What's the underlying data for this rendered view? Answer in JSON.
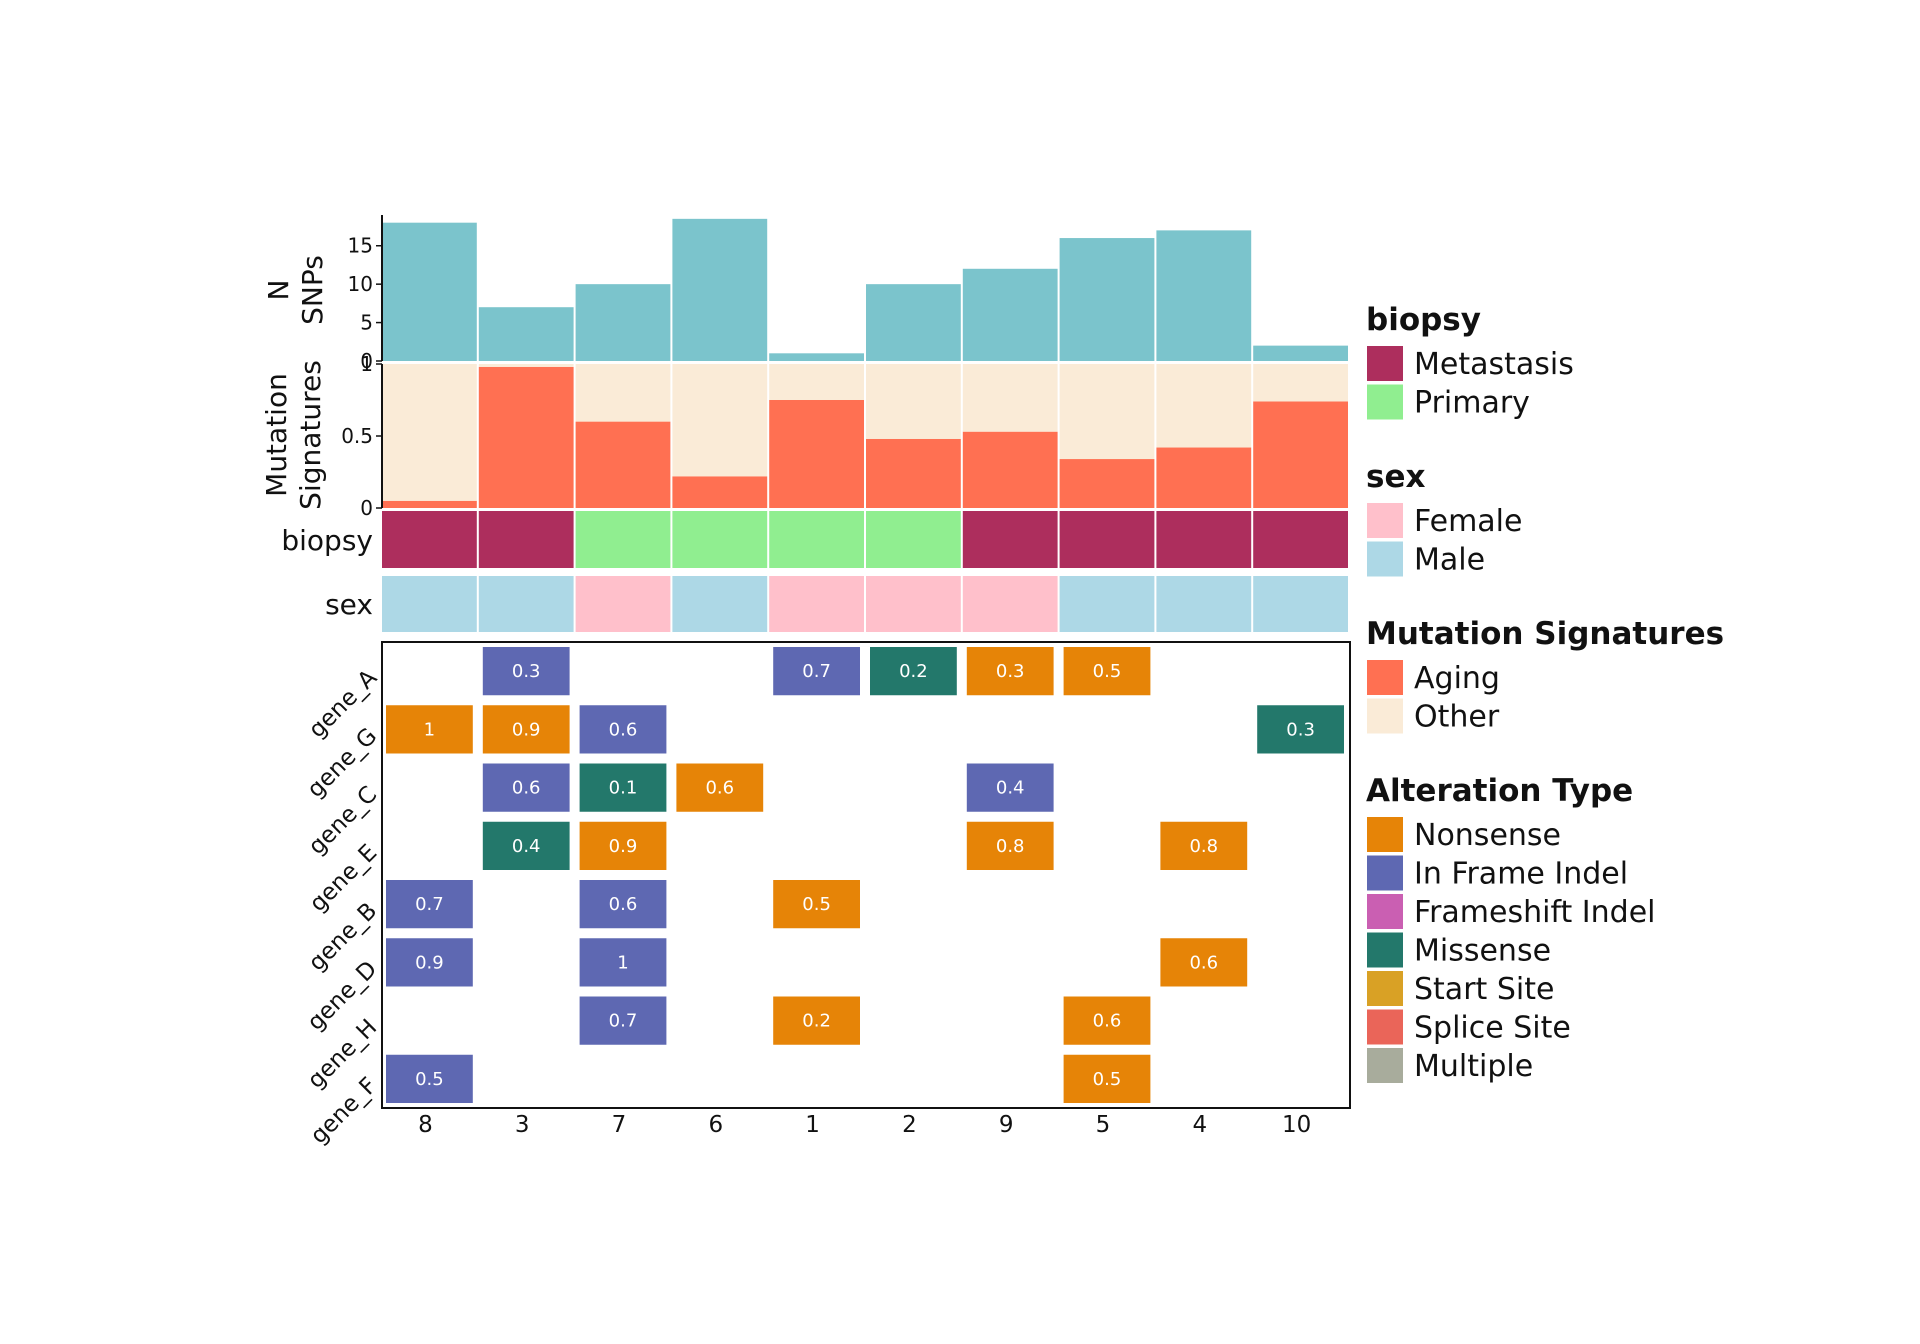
{
  "chart_data": {
    "type": "heatmap",
    "samples": [
      "8",
      "3",
      "7",
      "6",
      "1",
      "2",
      "9",
      "5",
      "4",
      "10"
    ],
    "genes": [
      "gene_A",
      "gene_G",
      "gene_C",
      "gene_E",
      "gene_B",
      "gene_D",
      "gene_H",
      "gene_F"
    ],
    "n_snps": {
      "ylabel": "N SNPs",
      "yticks": [
        "0",
        "5",
        "10",
        "15"
      ],
      "ylim": [
        0,
        19
      ],
      "values": [
        18,
        7,
        10,
        18.5,
        1,
        10,
        12,
        16,
        17,
        2
      ],
      "color": "#7bc4cc"
    },
    "mutation_signatures": {
      "ylabel": "Mutation Signatures",
      "yticks": [
        "0",
        "0.5",
        "1"
      ],
      "aging": [
        0.05,
        0.98,
        0.6,
        0.22,
        0.75,
        0.48,
        0.53,
        0.34,
        0.42,
        0.74
      ],
      "other": [
        0.95,
        0.02,
        0.4,
        0.78,
        0.25,
        0.52,
        0.47,
        0.66,
        0.58,
        0.26
      ]
    },
    "biopsy": {
      "label": "biopsy",
      "values": [
        "Metastasis",
        "Metastasis",
        "Primary",
        "Primary",
        "Primary",
        "Primary",
        "Metastasis",
        "Metastasis",
        "Metastasis",
        "Metastasis"
      ]
    },
    "sex": {
      "label": "sex",
      "values": [
        "Male",
        "Male",
        "Female",
        "Male",
        "Female",
        "Female",
        "Female",
        "Male",
        "Male",
        "Male"
      ]
    },
    "alterations": [
      {
        "gene": "gene_A",
        "sample": "3",
        "type": "In Frame Indel",
        "value": "0.3"
      },
      {
        "gene": "gene_A",
        "sample": "1",
        "type": "In Frame Indel",
        "value": "0.7"
      },
      {
        "gene": "gene_A",
        "sample": "2",
        "type": "Missense",
        "value": "0.2"
      },
      {
        "gene": "gene_A",
        "sample": "9",
        "type": "Nonsense",
        "value": "0.3"
      },
      {
        "gene": "gene_A",
        "sample": "5",
        "type": "Nonsense",
        "value": "0.5"
      },
      {
        "gene": "gene_G",
        "sample": "8",
        "type": "Nonsense",
        "value": "1"
      },
      {
        "gene": "gene_G",
        "sample": "3",
        "type": "Nonsense",
        "value": "0.9"
      },
      {
        "gene": "gene_G",
        "sample": "7",
        "type": "In Frame Indel",
        "value": "0.6"
      },
      {
        "gene": "gene_G",
        "sample": "10",
        "type": "Missense",
        "value": "0.3"
      },
      {
        "gene": "gene_C",
        "sample": "3",
        "type": "In Frame Indel",
        "value": "0.6"
      },
      {
        "gene": "gene_C",
        "sample": "7",
        "type": "Missense",
        "value": "0.1"
      },
      {
        "gene": "gene_C",
        "sample": "6",
        "type": "Nonsense",
        "value": "0.6"
      },
      {
        "gene": "gene_C",
        "sample": "9",
        "type": "In Frame Indel",
        "value": "0.4"
      },
      {
        "gene": "gene_E",
        "sample": "3",
        "type": "Missense",
        "value": "0.4"
      },
      {
        "gene": "gene_E",
        "sample": "7",
        "type": "Nonsense",
        "value": "0.9"
      },
      {
        "gene": "gene_E",
        "sample": "9",
        "type": "Nonsense",
        "value": "0.8"
      },
      {
        "gene": "gene_E",
        "sample": "4",
        "type": "Nonsense",
        "value": "0.8"
      },
      {
        "gene": "gene_B",
        "sample": "8",
        "type": "In Frame Indel",
        "value": "0.7"
      },
      {
        "gene": "gene_B",
        "sample": "7",
        "type": "In Frame Indel",
        "value": "0.6"
      },
      {
        "gene": "gene_B",
        "sample": "1",
        "type": "Nonsense",
        "value": "0.5"
      },
      {
        "gene": "gene_D",
        "sample": "8",
        "type": "In Frame Indel",
        "value": "0.9"
      },
      {
        "gene": "gene_D",
        "sample": "7",
        "type": "In Frame Indel",
        "value": "1"
      },
      {
        "gene": "gene_D",
        "sample": "4",
        "type": "Nonsense",
        "value": "0.6"
      },
      {
        "gene": "gene_H",
        "sample": "7",
        "type": "In Frame Indel",
        "value": "0.7"
      },
      {
        "gene": "gene_H",
        "sample": "1",
        "type": "Nonsense",
        "value": "0.2"
      },
      {
        "gene": "gene_H",
        "sample": "5",
        "type": "Nonsense",
        "value": "0.6"
      },
      {
        "gene": "gene_F",
        "sample": "8",
        "type": "In Frame Indel",
        "value": "0.5"
      },
      {
        "gene": "gene_F",
        "sample": "5",
        "type": "Nonsense",
        "value": "0.5"
      }
    ],
    "legends": [
      {
        "title": "biopsy",
        "items": [
          {
            "label": "Metastasis",
            "color": "#ad2e5d"
          },
          {
            "label": "Primary",
            "color": "#90ee90"
          }
        ]
      },
      {
        "title": "sex",
        "items": [
          {
            "label": "Female",
            "color": "#ffc0cb"
          },
          {
            "label": "Male",
            "color": "#add8e6"
          }
        ]
      },
      {
        "title": "Mutation Signatures",
        "items": [
          {
            "label": "Aging",
            "color": "#ff7052"
          },
          {
            "label": "Other",
            "color": "#faebd7"
          }
        ]
      },
      {
        "title": "Alteration Type",
        "items": [
          {
            "label": "Nonsense",
            "color": "#e68407"
          },
          {
            "label": "In Frame Indel",
            "color": "#5e68b2"
          },
          {
            "label": "Frameshift Indel",
            "color": "#ca5fb2"
          },
          {
            "label": "Missense",
            "color": "#23786b"
          },
          {
            "label": "Start Site",
            "color": "#d9a125"
          },
          {
            "label": "Splice Site",
            "color": "#ea6559"
          },
          {
            "label": "Multiple",
            "color": "#a8ac9c"
          }
        ]
      }
    ]
  }
}
